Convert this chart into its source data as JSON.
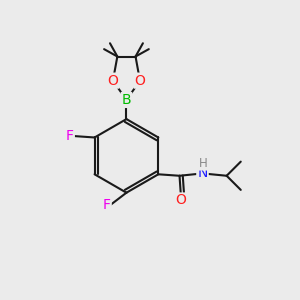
{
  "bg_color": "#ebebeb",
  "bond_color": "#1a1a1a",
  "bond_width": 1.5,
  "atom_colors": {
    "C": "#1a1a1a",
    "H": "#888888",
    "N": "#2020ff",
    "O": "#ff2020",
    "F": "#ee00ee",
    "B": "#00bb00"
  },
  "font_size": 9.5,
  "figsize": [
    3.0,
    3.0
  ],
  "dpi": 100
}
